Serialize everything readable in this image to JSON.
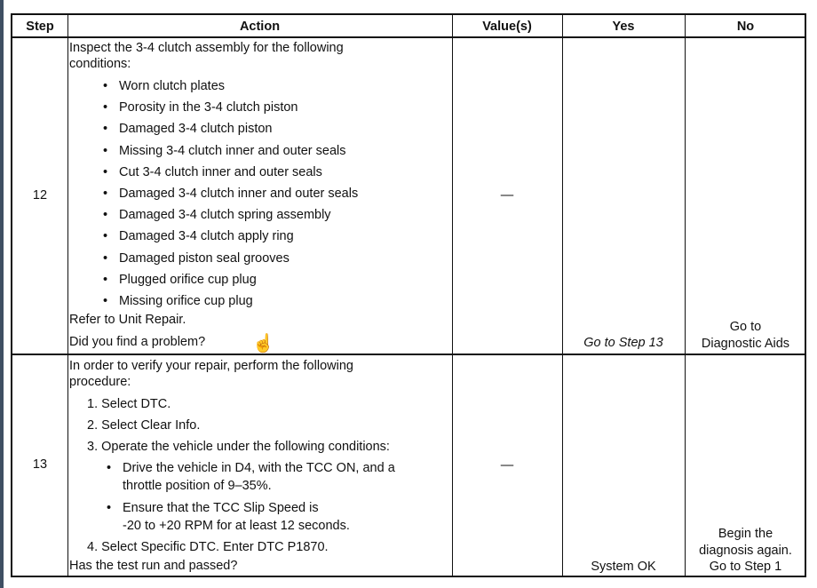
{
  "headers": {
    "step": "Step",
    "action": "Action",
    "values": "Value(s)",
    "yes": "Yes",
    "no": "No"
  },
  "rows": [
    {
      "step": "12",
      "action_intro": [
        "Inspect the 3-4 clutch assembly for the following",
        "conditions:"
      ],
      "bullets": [
        "Worn clutch plates",
        "Porosity in the 3-4 clutch piston",
        "Damaged 3-4 clutch piston",
        "Missing 3-4 clutch inner and outer seals",
        "Cut 3-4 clutch inner and outer seals",
        "Damaged 3-4 clutch inner and outer seals",
        "Damaged 3-4 clutch spring assembly",
        "Damaged 3-4 clutch apply ring",
        "Damaged piston seal grooves",
        "Plugged orifice cup plug",
        "Missing orifice cup plug"
      ],
      "refer": "Refer to Unit Repair.",
      "question": "Did you find a problem?",
      "value": "—",
      "yes": "Go to Step 13",
      "no": [
        "Go to",
        "Diagnostic Aids"
      ]
    },
    {
      "step": "13",
      "action_intro": [
        "In order to verify your repair, perform the following",
        "procedure:"
      ],
      "steps": [
        "1.  Select DTC.",
        "2.  Select Clear Info.",
        "3.  Operate the vehicle under the following conditions:"
      ],
      "sub_bullets": [
        [
          "Drive the vehicle in D4, with the TCC ON, and a",
          "throttle position of 9–35%."
        ],
        [
          "Ensure that the TCC Slip Speed is",
          "-20 to +20 RPM for at least 12 seconds."
        ]
      ],
      "step4": "4.  Select Specific DTC. Enter DTC P1870.",
      "question": "Has the test run and passed?",
      "value": "—",
      "yes": "System OK",
      "no": [
        "Begin the",
        "diagnosis again.",
        "Go to Step 1"
      ]
    }
  ],
  "icons": {
    "cursor": "hand-pointer-icon",
    "bullet": "•"
  },
  "colors": {
    "left_edge": "#3f4f63"
  }
}
